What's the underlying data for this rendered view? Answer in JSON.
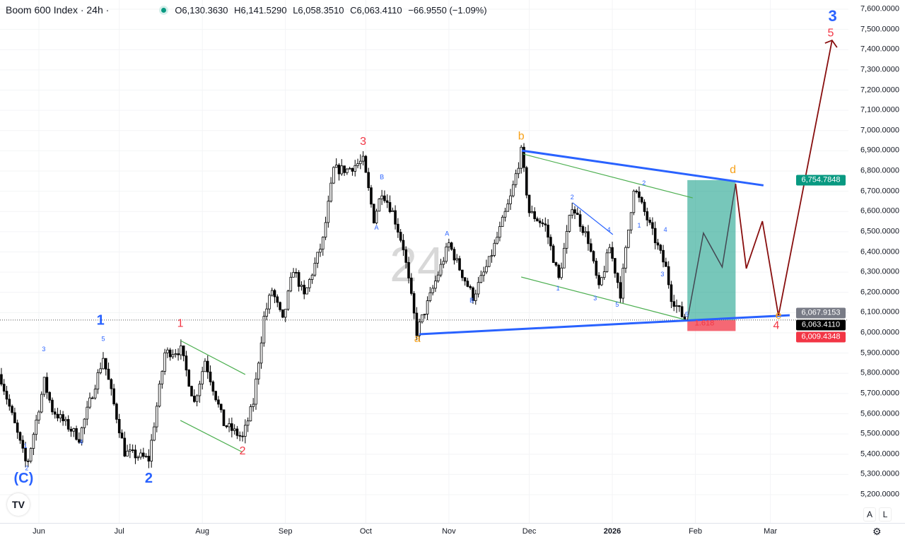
{
  "header": {
    "title": "Boom 600 Index · 24h ·",
    "open": "O6,130.3630",
    "high": "H6,141.5290",
    "low": "L6,058.3510",
    "close": "C6,063.4110",
    "change": "−66.9550 (−1.09%)"
  },
  "watermark": "24",
  "logo_text": "TV",
  "buttons": {
    "auto": "A",
    "log": "L",
    "settings_icon": "gear-icon"
  },
  "colors": {
    "up": "#ffffff",
    "down": "#000000",
    "blue": "#2962ff",
    "green": "#4caf50",
    "red": "#f23645",
    "orange": "#f7a21b",
    "darkred": "#880e0e",
    "teal": "#089981"
  },
  "chart_data": {
    "type": "candlestick",
    "title": "Boom 600 Index · 24h",
    "x_origin": "2025-06-01",
    "x_unit": "days since 2025-06-01",
    "ylim": [
      5130,
      7640
    ],
    "xlim": [
      -14.5,
      300
    ],
    "y_ticks": [
      "7,600.0000",
      "7,500.0000",
      "7,400.0000",
      "7,300.0000",
      "7,200.0000",
      "7,100.0000",
      "7,000.0000",
      "6,900.0000",
      "6,800.0000",
      "6,700.0000",
      "6,600.0000",
      "6,500.0000",
      "6,400.0000",
      "6,300.0000",
      "6,200.0000",
      "6,100.0000",
      "6,000.0000",
      "5,900.0000",
      "5,800.0000",
      "5,700.0000",
      "5,600.0000",
      "5,500.0000",
      "5,400.0000",
      "5,300.0000",
      "5,200.0000"
    ],
    "x_ticks": [
      {
        "label": "Jun",
        "day": 0
      },
      {
        "label": "Jul",
        "day": 30
      },
      {
        "label": "Aug",
        "day": 61
      },
      {
        "label": "Sep",
        "day": 92
      },
      {
        "label": "Oct",
        "day": 122
      },
      {
        "label": "Nov",
        "day": 153
      },
      {
        "label": "Dec",
        "day": 183
      },
      {
        "label": "2026",
        "day": 214,
        "bold": true
      },
      {
        "label": "Feb",
        "day": 245
      },
      {
        "label": "Mar",
        "day": 273
      }
    ],
    "price_path_pivots": [
      [
        -14.5,
        5794
      ],
      [
        -4.5,
        5340
      ],
      [
        2,
        5760
      ],
      [
        5,
        5620
      ],
      [
        15,
        5480
      ],
      [
        24,
        5880
      ],
      [
        32,
        5410
      ],
      [
        41,
        5375
      ],
      [
        47,
        5900
      ],
      [
        53,
        5915
      ],
      [
        58,
        5655
      ],
      [
        62,
        5865
      ],
      [
        69,
        5550
      ],
      [
        76,
        5480
      ],
      [
        80,
        5655
      ],
      [
        84,
        6075
      ],
      [
        87,
        6213
      ],
      [
        91,
        6056
      ],
      [
        95,
        6318
      ],
      [
        99,
        6178
      ],
      [
        106,
        6458
      ],
      [
        110,
        6807
      ],
      [
        115,
        6807
      ],
      [
        121,
        6850
      ],
      [
        125,
        6562
      ],
      [
        128,
        6702
      ],
      [
        132,
        6597
      ],
      [
        136,
        6423
      ],
      [
        141,
        6003
      ],
      [
        145,
        6143
      ],
      [
        153,
        6440
      ],
      [
        157,
        6318
      ],
      [
        162,
        6178
      ],
      [
        168,
        6353
      ],
      [
        176,
        6667
      ],
      [
        180,
        6894
      ],
      [
        183,
        6597
      ],
      [
        189,
        6527
      ],
      [
        194,
        6265
      ],
      [
        199,
        6632
      ],
      [
        205,
        6458
      ],
      [
        209,
        6213
      ],
      [
        213,
        6423
      ],
      [
        217,
        6195
      ],
      [
        222,
        6720
      ],
      [
        226,
        6597
      ],
      [
        230,
        6458
      ],
      [
        234,
        6318
      ],
      [
        236,
        6178
      ],
      [
        241,
        6063
      ]
    ],
    "price_tags": [
      {
        "label": "6,754.7848",
        "price": 6754.7848,
        "color": "#089981"
      },
      {
        "label": "6,067.9153",
        "price": 6067.9153,
        "color": "#787b86"
      },
      {
        "label": "6,063.4110",
        "price": 6063.411,
        "color": "#000000"
      },
      {
        "label": "6,009.4348",
        "price": 6009.4348,
        "color": "#f23645"
      }
    ],
    "last_price": 6063.411,
    "drawings": {
      "lines": [
        {
          "name": "upper-blue-trendline",
          "color": "#2962ff",
          "width": 3,
          "pts": [
            [
              180.2,
              6901
            ],
            [
              270.4,
              6729
            ]
          ]
        },
        {
          "name": "lower-blue-trendline",
          "color": "#2962ff",
          "width": 3,
          "pts": [
            [
              142,
              5993
            ],
            [
              280.2,
              6087
            ]
          ]
        },
        {
          "name": "green-channel-upper",
          "color": "#4caf50",
          "width": 1.2,
          "pts": [
            [
              180.7,
              6884
            ],
            [
              244,
              6667
            ]
          ]
        },
        {
          "name": "green-channel-lower",
          "color": "#4caf50",
          "width": 1.2,
          "pts": [
            [
              180,
              6276
            ],
            [
              240.9,
              6066
            ]
          ]
        },
        {
          "name": "green-flag-upper",
          "color": "#4caf50",
          "width": 1.2,
          "pts": [
            [
              52.8,
              5962
            ],
            [
              77,
              5794
            ]
          ]
        },
        {
          "name": "green-flag-lower",
          "color": "#4caf50",
          "width": 1.2,
          "pts": [
            [
              52.8,
              5567
            ],
            [
              76,
              5410
            ]
          ]
        },
        {
          "name": "blue-small-line",
          "color": "#2962ff",
          "width": 1.2,
          "pts": [
            [
              199.2,
              6643
            ],
            [
              214.2,
              6486
            ]
          ]
        },
        {
          "name": "projection-path-grey",
          "color": "#434651",
          "width": 1.5,
          "pts": [
            [
              242,
              6063
            ],
            [
              248,
              6493
            ],
            [
              255,
              6325
            ],
            [
              260,
              6737
            ]
          ]
        },
        {
          "name": "projection-path-darkred",
          "color": "#880e0e",
          "width": 1.8,
          "pts": [
            [
              260,
              6737
            ],
            [
              264,
              6318
            ],
            [
              270,
              6552
            ],
            [
              276,
              6084
            ],
            [
              296,
              7446
            ]
          ]
        }
      ],
      "rects": [
        {
          "name": "target-zone",
          "color": "#089981",
          "opacity": 0.55,
          "x": [
            242,
            260
          ],
          "y": [
            6063,
            6755
          ]
        },
        {
          "name": "stop-zone",
          "color": "#f23645",
          "opacity": 0.75,
          "x": [
            242,
            260
          ],
          "y": [
            6009,
            6063
          ]
        }
      ]
    },
    "annotations": [
      {
        "text": "(C)",
        "day": -5.7,
        "price": 5260,
        "color": "#2962ff",
        "size": 20
      },
      {
        "text": "2",
        "day": -4.5,
        "price": 5320,
        "color": "#2962ff",
        "size": 9
      },
      {
        "text": "1",
        "day": -5,
        "price": 5430,
        "color": "#2962ff",
        "size": 9
      },
      {
        "text": "3",
        "day": 1.8,
        "price": 5910,
        "color": "#2962ff",
        "size": 9
      },
      {
        "text": "4",
        "day": 15.8,
        "price": 5450,
        "color": "#2962ff",
        "size": 9
      },
      {
        "text": "5",
        "day": 24,
        "price": 5960,
        "color": "#2962ff",
        "size": 9
      },
      {
        "text": "1",
        "day": 23,
        "price": 6040,
        "color": "#2962ff",
        "size": 20
      },
      {
        "text": "2",
        "day": 41,
        "price": 5260,
        "color": "#2962ff",
        "size": 20
      },
      {
        "text": "1",
        "day": 52.8,
        "price": 6030,
        "color": "#f23645",
        "size": 16
      },
      {
        "text": "2",
        "day": 76,
        "price": 5400,
        "color": "#f23645",
        "size": 16
      },
      {
        "text": "3",
        "day": 121,
        "price": 6930,
        "color": "#f23645",
        "size": 16
      },
      {
        "text": "B",
        "day": 128,
        "price": 6760,
        "color": "#2962ff",
        "size": 9
      },
      {
        "text": "A",
        "day": 126,
        "price": 6510,
        "color": "#2962ff",
        "size": 9
      },
      {
        "text": "a",
        "day": 141.2,
        "price": 5955,
        "color": "#f7a21b",
        "size": 16
      },
      {
        "text": "b",
        "day": 180,
        "price": 6955,
        "color": "#f7a21b",
        "size": 16
      },
      {
        "text": "A",
        "day": 152.3,
        "price": 6480,
        "color": "#2962ff",
        "size": 9
      },
      {
        "text": "B",
        "day": 161.5,
        "price": 6150,
        "color": "#2962ff",
        "size": 9
      },
      {
        "text": "2",
        "day": 199,
        "price": 6660,
        "color": "#2962ff",
        "size": 9
      },
      {
        "text": "4",
        "day": 212.7,
        "price": 6500,
        "color": "#2962ff",
        "size": 9
      },
      {
        "text": "1",
        "day": 193.7,
        "price": 6210,
        "color": "#2962ff",
        "size": 9
      },
      {
        "text": "3",
        "day": 207.6,
        "price": 6160,
        "color": "#2962ff",
        "size": 9
      },
      {
        "text": "5",
        "day": 215.8,
        "price": 6130,
        "color": "#2962ff",
        "size": 9
      },
      {
        "text": "2",
        "day": 225.8,
        "price": 6730,
        "color": "#2962ff",
        "size": 9
      },
      {
        "text": "1",
        "day": 224,
        "price": 6520,
        "color": "#2962ff",
        "size": 9
      },
      {
        "text": "4",
        "day": 233.8,
        "price": 6500,
        "color": "#2962ff",
        "size": 9
      },
      {
        "text": "3",
        "day": 232.7,
        "price": 6280,
        "color": "#2962ff",
        "size": 9
      },
      {
        "text": "5",
        "day": 241.8,
        "price": 6080,
        "color": "#2962ff",
        "size": 9
      },
      {
        "text": "1.618",
        "day": 248.4,
        "price": 6036,
        "color": "#f23645",
        "size": 11
      },
      {
        "text": "d",
        "day": 259,
        "price": 6790,
        "color": "#f7a21b",
        "size": 16
      },
      {
        "text": "e",
        "day": 276,
        "price": 6070,
        "color": "#f7a21b",
        "size": 16
      },
      {
        "text": "4",
        "day": 275.2,
        "price": 6020,
        "color": "#f23645",
        "size": 16
      },
      {
        "text": "5",
        "day": 295.5,
        "price": 7465,
        "color": "#f23645",
        "size": 16
      },
      {
        "text": "3",
        "day": 296.2,
        "price": 7540,
        "color": "#2962ff",
        "size": 22
      }
    ]
  }
}
